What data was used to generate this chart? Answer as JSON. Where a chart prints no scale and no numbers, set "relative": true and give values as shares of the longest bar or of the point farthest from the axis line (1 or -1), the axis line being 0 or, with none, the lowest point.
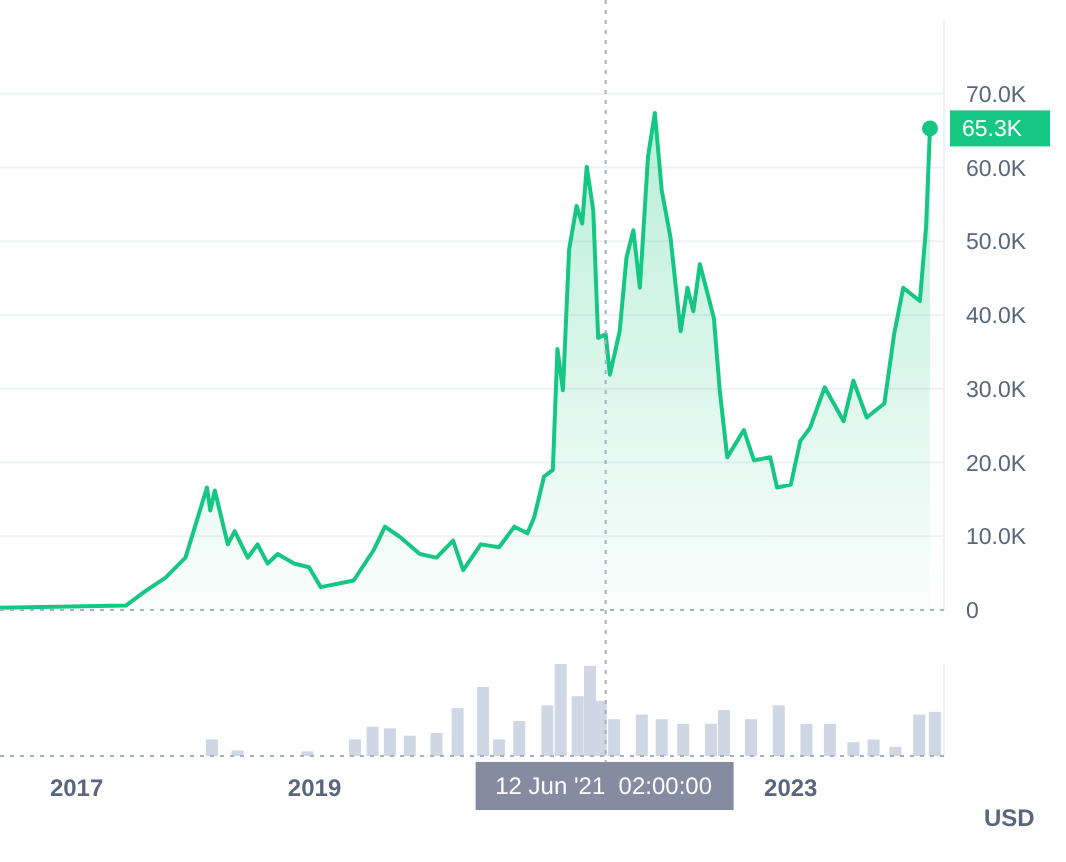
{
  "chart_data": [
    {
      "type": "area",
      "grid": "y",
      "tick_labels": "y",
      "xlim": [
        "2016-05-11",
        "2024-04-15"
      ],
      "ylim": [
        0,
        80
      ],
      "yticks": [
        0,
        {
          "value": 10,
          "label": "10.0K"
        },
        {
          "value": 20,
          "label": "20.0K"
        },
        {
          "value": 30,
          "label": "30.0K"
        },
        {
          "value": 40,
          "label": "40.0K"
        },
        {
          "value": 50,
          "label": "50.0K"
        },
        {
          "value": 60,
          "label": "60.0K"
        },
        {
          "value": 70,
          "label": "70.0K"
        }
      ],
      "series": [
        {
          "color": "#16c784",
          "x": [
            "2016-05-11",
            "2017-06-01",
            "2017-08-01",
            "2017-10-01",
            "2017-12-01",
            "2018-02-05",
            "2018-02-15",
            "2018-03-01",
            "2018-04-10",
            "2018-05-01",
            "2018-06-10",
            "2018-07-10",
            "2018-08-10",
            "2018-09-10",
            "2018-10-30",
            "2018-12-15",
            "2019-01-20",
            "2019-05-01",
            "2019-07-01",
            "2019-08-05",
            "2019-09-20",
            "2019-11-20",
            "2020-01-10",
            "2020-03-01",
            "2020-04-01",
            "2020-05-25",
            "2020-07-20",
            "2020-09-05",
            "2020-10-15",
            "2020-11-05",
            "2020-12-05",
            "2021-01-01",
            "2021-01-15",
            "2021-02-01",
            "2021-02-20",
            "2021-03-15",
            "2021-04-01",
            "2021-04-15",
            "2021-05-05",
            "2021-05-20",
            "2021-06-12",
            "2021-06-25",
            "2021-07-25",
            "2021-08-15",
            "2021-09-05",
            "2021-09-25",
            "2021-10-20",
            "2021-11-10",
            "2021-12-01",
            "2021-12-28",
            "2022-01-28",
            "2022-02-18",
            "2022-03-08",
            "2022-03-28",
            "2022-05-10",
            "2022-05-28",
            "2022-06-20",
            "2022-08-10",
            "2022-09-10",
            "2022-10-30",
            "2022-11-20",
            "2023-01-01",
            "2023-01-30",
            "2023-03-01",
            "2023-04-15",
            "2023-06-12",
            "2023-07-12",
            "2023-08-22",
            "2023-10-15",
            "2023-11-14",
            "2023-12-12",
            "2024-02-01",
            "2024-02-20",
            "2024-03-03"
          ],
          "values": [
            0.3,
            0.6,
            2.6,
            4.4,
            7.1,
            16.6,
            13.5,
            16.2,
            8.9,
            10.7,
            7.1,
            8.9,
            6.3,
            7.6,
            6.3,
            5.8,
            3.1,
            4.0,
            8.1,
            11.3,
            9.9,
            7.6,
            7.1,
            9.4,
            5.4,
            8.9,
            8.5,
            11.3,
            10.4,
            12.6,
            18.1,
            19.0,
            35.4,
            29.8,
            48.9,
            54.8,
            52.4,
            60.1,
            54.2,
            36.9,
            37.4,
            31.9,
            37.8,
            47.8,
            51.5,
            43.7,
            61.5,
            67.4,
            56.9,
            50.5,
            37.8,
            43.7,
            40.5,
            46.9,
            39.6,
            29.8,
            20.7,
            24.4,
            20.3,
            20.7,
            16.6,
            17.0,
            22.9,
            24.7,
            30.2,
            25.6,
            31.1,
            26.1,
            28.0,
            37.4,
            43.7,
            41.9,
            51.9,
            65.3
          ]
        }
      ],
      "annotations": [
        {
          "text": "65.3K",
          "x": "2024-03-03",
          "y": 65.3
        }
      ],
      "ref_lines": [
        {
          "axis": "x",
          "value": "2021-06-12",
          "line_style": "dotted"
        },
        {
          "axis": "y",
          "value": 0,
          "line_style": "dotted"
        }
      ]
    },
    {
      "type": "bar",
      "relative": true,
      "tick_labels": "x",
      "xlim": [
        "2016-05-11",
        "2024-04-15"
      ],
      "xticks": [
        "2017",
        "2019",
        "2023"
      ],
      "color": "#cfd6e4",
      "x": [
        "2018-02-20",
        "2018-05-10",
        "2018-12-10",
        "2019-05-05",
        "2019-06-28",
        "2019-08-20",
        "2019-10-20",
        "2020-01-10",
        "2020-03-15",
        "2020-06-01",
        "2020-07-20",
        "2020-09-20",
        "2020-12-15",
        "2021-01-25",
        "2021-03-18",
        "2021-04-25",
        "2021-05-28",
        "2021-07-08",
        "2021-10-01",
        "2021-12-01",
        "2022-02-05",
        "2022-05-01",
        "2022-06-10",
        "2022-09-01",
        "2022-11-25",
        "2023-02-18",
        "2023-05-01",
        "2023-07-12",
        "2023-09-12",
        "2023-11-18",
        "2024-01-30",
        "2024-03-18"
      ],
      "values": [
        0.18,
        0.06,
        0.05,
        0.18,
        0.32,
        0.3,
        0.22,
        0.25,
        0.52,
        0.75,
        0.18,
        0.38,
        0.55,
        1.0,
        0.65,
        0.98,
        0.6,
        0.4,
        0.45,
        0.4,
        0.35,
        0.35,
        0.5,
        0.4,
        0.55,
        0.35,
        0.35,
        0.15,
        0.18,
        0.1,
        0.45,
        0.48
      ],
      "annotations": [
        "12 Jun '21  02:00:00",
        "USD"
      ],
      "ref_lines": [
        {
          "axis": "x",
          "value": "2021-06-12",
          "line_style": "dotted"
        }
      ]
    }
  ]
}
